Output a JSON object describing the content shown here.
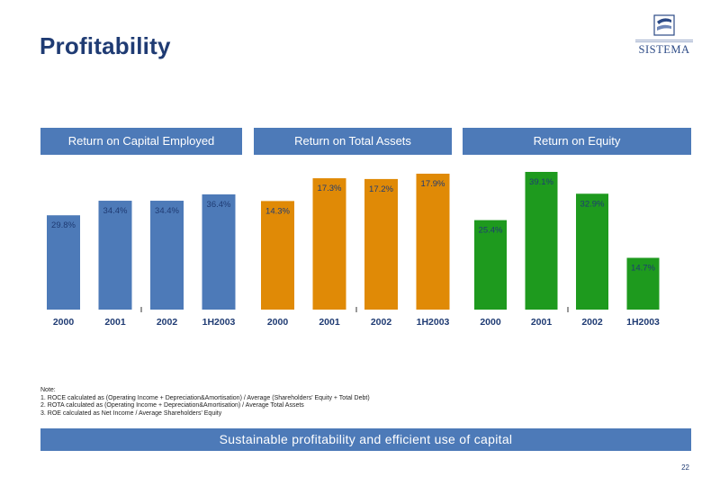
{
  "title": "Profitability",
  "logo": {
    "name": "SISTEMA"
  },
  "colors": {
    "header": "#4d7ab8",
    "roce": "#4d7ab8",
    "rota": "#e08a06",
    "roe": "#1e9a1e",
    "title": "#1f3b73"
  },
  "chart_data": [
    {
      "type": "bar",
      "title": "Return on Capital Employed",
      "categories": [
        "2000",
        "2001",
        "2002",
        "1H2003"
      ],
      "values": [
        29.8,
        34.4,
        34.4,
        36.4
      ],
      "value_labels": [
        "29.8%",
        "34.4%",
        "34.4%",
        "36.4%"
      ],
      "ylim": [
        0,
        40
      ]
    },
    {
      "type": "bar",
      "title": "Return on Total Assets",
      "categories": [
        "2000",
        "2001",
        "2002",
        "1H2003"
      ],
      "values": [
        14.3,
        17.3,
        17.2,
        17.9
      ],
      "value_labels": [
        "14.3%",
        "17.3%",
        "17.2%",
        "17.9%"
      ],
      "ylim": [
        0,
        20
      ]
    },
    {
      "type": "bar",
      "title": "Return on Equity",
      "categories": [
        "2000",
        "2001",
        "2002",
        "1H2003"
      ],
      "values": [
        25.4,
        39.1,
        32.9,
        14.7
      ],
      "value_labels": [
        "25.4%",
        "39.1%",
        "32.9%",
        "14.7%"
      ],
      "ylim": [
        0,
        45
      ]
    }
  ],
  "notes": {
    "heading": "Note:",
    "lines": [
      "1. ROCE calculated as (Operating Income + Depreciation&Amortisation) / Average (Shareholders' Equity + Total Debt)",
      "2. ROTA calculated as (Operating Income + Depreciation&Amortisation) / Average Total Assets",
      "3. ROE calculated as Net Income / Average Shareholders' Equity"
    ]
  },
  "banner": "Sustainable profitability and efficient use of capital",
  "page_number": "22"
}
